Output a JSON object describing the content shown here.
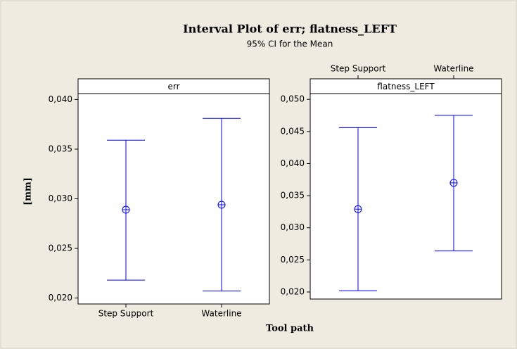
{
  "title": "Interval Plot of err; flatness_LEFT",
  "subtitle": "95% CI for the Mean",
  "y_label": "[mm]",
  "x_label": "Tool path",
  "chart_data": [
    {
      "type": "interval",
      "panel": "err",
      "category_side": "bottom",
      "categories": [
        "Step Support",
        "Waterline"
      ],
      "means": [
        0.0289,
        0.0294
      ],
      "lower": [
        0.0218,
        0.0207
      ],
      "upper": [
        0.0359,
        0.0381
      ],
      "color": "#0000ff",
      "ylim": [
        0.0194,
        0.0406
      ],
      "yticks": [
        {
          "value": 0.02,
          "label": "0,020"
        },
        {
          "value": 0.025,
          "label": "0,025"
        },
        {
          "value": 0.03,
          "label": "0,030"
        },
        {
          "value": 0.035,
          "label": "0,035"
        },
        {
          "value": 0.04,
          "label": "0,040"
        }
      ]
    },
    {
      "type": "interval",
      "panel": "flatness_LEFT",
      "category_side": "top",
      "categories": [
        "Step Support",
        "Waterline"
      ],
      "means": [
        0.0329,
        0.037
      ],
      "lower": [
        0.0202,
        0.0264
      ],
      "upper": [
        0.0456,
        0.0475
      ],
      "color": "#0000ff",
      "ylim": [
        0.0189,
        0.0509
      ],
      "yticks": [
        {
          "value": 0.02,
          "label": "0,020"
        },
        {
          "value": 0.025,
          "label": "0,025"
        },
        {
          "value": 0.03,
          "label": "0,030"
        },
        {
          "value": 0.035,
          "label": "0,035"
        },
        {
          "value": 0.04,
          "label": "0,040"
        },
        {
          "value": 0.045,
          "label": "0,045"
        },
        {
          "value": 0.05,
          "label": "0,050"
        }
      ]
    }
  ]
}
